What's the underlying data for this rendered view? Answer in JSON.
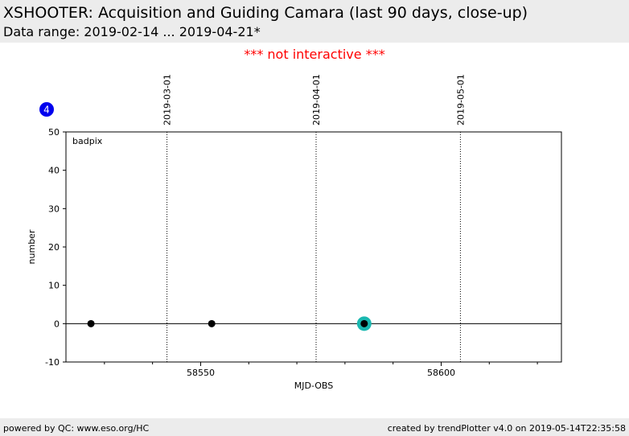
{
  "header": {
    "title": "XSHOOTER: Acquisition and Guiding Camara (last 90 days, close-up)",
    "subtitle": "Data range: 2019-02-14 ... 2019-04-21*"
  },
  "notice": "*** not interactive ***",
  "badge": "4",
  "footer": {
    "left": "powered by QC: www.eso.org/HC",
    "right": "created by trendPlotter v4.0 on 2019-05-14T22:35:58"
  },
  "colors": {
    "header_bg": "#ececec",
    "notice": "#ff0000",
    "badge": "#0000ee",
    "point": "#000000",
    "highlight": "#1ab8b0"
  },
  "chart_data": {
    "type": "scatter",
    "xlabel": "MJD-OBS",
    "ylabel": "number",
    "panel_label": "badpix",
    "xlim": [
      58522,
      58625
    ],
    "ylim": [
      -10,
      50
    ],
    "yticks": [
      -10,
      0,
      10,
      20,
      30,
      40,
      50
    ],
    "xticks_major": [
      58550,
      58600
    ],
    "xticks_minor": [
      58530,
      58540,
      58560,
      58570,
      58580,
      58590,
      58610,
      58620
    ],
    "zero_line": 0,
    "date_markers": [
      {
        "label": "2019-03-01",
        "mjd": 58543
      },
      {
        "label": "2019-04-01",
        "mjd": 58574
      },
      {
        "label": "2019-05-01",
        "mjd": 58604
      }
    ],
    "points": [
      {
        "x": 58527.2,
        "y": 0
      },
      {
        "x": 58552.3,
        "y": 0
      },
      {
        "x": 58584.0,
        "y": 0,
        "highlight": true
      }
    ]
  }
}
